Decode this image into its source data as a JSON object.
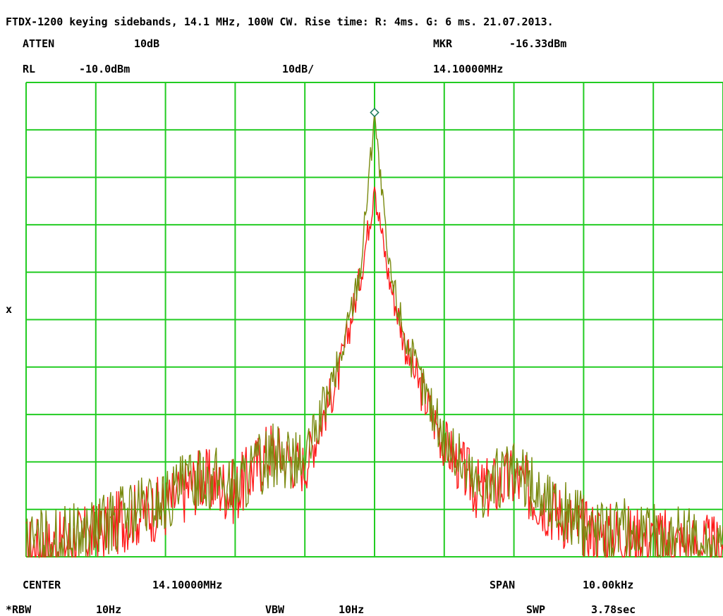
{
  "title": "FTDX-1200 keying sidebands, 14.1 MHz, 100W CW. Rise time: R: 4ms. G: 6 ms. 21.07.2013.",
  "header": {
    "atten_label": "ATTEN",
    "atten_value": "10dB",
    "mkr_label": "MKR",
    "mkr_value": "-16.33dBm",
    "rl_label": "RL",
    "rl_value": "-10.0dBm",
    "scale": "10dB/",
    "mkr_freq": "14.10000MHz"
  },
  "side_marker": "x",
  "footer": {
    "center_label": "CENTER",
    "center_value": "14.10000MHz",
    "span_label": "SPAN",
    "span_value": "10.00kHz",
    "rbw_label": "*RBW",
    "rbw_value": "10Hz",
    "vbw_label": "VBW",
    "vbw_value": "10Hz",
    "swp_label": "SWP",
    "swp_value": "3.78sec"
  },
  "colors": {
    "grid": "#22cc22",
    "trace_red": "#ff1a1a",
    "trace_green": "#7a8a10",
    "marker": "#1a7a5a"
  },
  "chart_data": {
    "type": "line",
    "grid": true,
    "x_unit": "kHz offset from center",
    "xlim": [
      -5,
      5
    ],
    "ylim": [
      -110,
      -10
    ],
    "marker": {
      "x": 0,
      "y": -16.33
    },
    "series": [
      {
        "name": "R",
        "x": [
          -5,
          -4.5,
          -4,
          -3.5,
          -3,
          -2.5,
          -2,
          -1.5,
          -1,
          -0.5,
          -0.2,
          0,
          0.2,
          0.5,
          1,
          1.5,
          2,
          2.5,
          3,
          3.5,
          4,
          4.5,
          5
        ],
        "values": [
          -107,
          -106,
          -104,
          -100,
          -98,
          -92,
          -95,
          -86,
          -90,
          -70,
          -50,
          -32,
          -50,
          -68,
          -85,
          -95,
          -92,
          -98,
          -103,
          -104,
          -105,
          -106,
          -107
        ]
      },
      {
        "name": "G",
        "x": [
          -5,
          -4.5,
          -4,
          -3.5,
          -3,
          -2.5,
          -2,
          -1.5,
          -1,
          -0.5,
          -0.2,
          0,
          0.2,
          0.5,
          1,
          1.5,
          2,
          2.5,
          3,
          3.5,
          4,
          4.5,
          5
        ],
        "values": [
          -106,
          -105,
          -103,
          -99,
          -97,
          -91,
          -94,
          -87,
          -89,
          -68,
          -48,
          -16.33,
          -48,
          -66,
          -84,
          -94,
          -91,
          -97,
          -102,
          -103,
          -104,
          -105,
          -106
        ]
      }
    ]
  }
}
